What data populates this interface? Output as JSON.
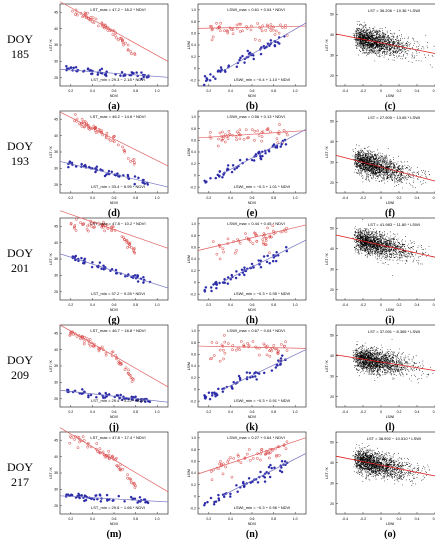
{
  "rows": [
    {
      "doy": "DOY",
      "num": "185",
      "a": {
        "label": "(a)",
        "eq_top": "LST_max = 47.2 − 16.2 * NDVI",
        "eq_bot": "LST_min = 29.3 − 2.18 * NDVI"
      },
      "b": {
        "label": "(b)",
        "eq_top": "LSWI_max = 0.61 + 0.04 * NDVI",
        "eq_bot": "LSWI_min = −0.4 + 1.10 * NDVI"
      },
      "c": {
        "label": "(c)",
        "eq": "LST = 36.206 − 10.36 * LSWI"
      }
    },
    {
      "doy": "DOY",
      "num": "193",
      "a": {
        "label": "(d)",
        "eq_top": "LST_max = 46.2 − 14.6 * NDVI",
        "eq_bot": "LST_min = 33.4 − 6.95 * NDVI"
      },
      "b": {
        "label": "(e)",
        "eq_top": "LSWI_max = 0.56 + 0.13 * NDVI",
        "eq_bot": "LSWI_min = −0.3 + 1.01 * NDVI"
      },
      "c": {
        "label": "(f)",
        "eq": "LST = 27.905 − 13.65 * LSWI"
      }
    },
    {
      "doy": "DOY",
      "num": "201",
      "a": {
        "label": "(g)",
        "eq_top": "LST_max = 47.8 − 10.2 * NDVI",
        "eq_bot": "LST_min = 37.2 − 9.28 * NDVI"
      },
      "b": {
        "label": "(h)",
        "eq_top": "LSWI_max = 0.44 + 0.45 * NDVI",
        "eq_bot": "LSWI_min = −0.3 + 0.95 * NDVI"
      },
      "c": {
        "label": "(i)",
        "eq": "LST = 41.983 − 11.80 * LSWI"
      }
    },
    {
      "doy": "DOY",
      "num": "209",
      "a": {
        "label": "(j)",
        "eq_top": "LST_max = 46.7 − 16.8 * NDVI",
        "eq_bot": "LST_min = 29.4 − 3.22 * NDVI"
      },
      "b": {
        "label": "(k)",
        "eq_top": "LSWI_max = 0.67 − 0.04 * NDVI",
        "eq_bot": "LSWI_min = −0.3 + 0.91 * NDVI"
      },
      "c": {
        "label": "(l)",
        "eq": "LST = 37.091 − 8.365 * LSWI"
      }
    },
    {
      "doy": "DOY",
      "num": "217",
      "a": {
        "label": "(m)",
        "eq_top": "LST_max = 47.8 − 17.4 * NDVI",
        "eq_bot": "LST_min = 29.6 − 1.66 * NDVI"
      },
      "b": {
        "label": "(n)",
        "eq_top": "LSWI_max = 0.27 + 0.64 * NDVI",
        "eq_bot": "LSWI_min = −0.3 + 0.96 * NDVI"
      },
      "c": {
        "label": "(o)",
        "eq": "LST = 38.992 − 10.510 * LSWI"
      }
    }
  ],
  "axes": {
    "ndvi": "NDVI",
    "lsw": "LSWI",
    "lst": "LST / K"
  },
  "ticks": {
    "ndvi": [
      "0.2",
      "0.4",
      "0.6",
      "0.8",
      "1.0"
    ],
    "lsw_x": [
      "-0.4",
      "-0.2",
      "0",
      "0.2",
      "0.4",
      "0.6"
    ],
    "lst": [
      "25",
      "30",
      "35",
      "40",
      "45"
    ],
    "lst_c": [
      "20",
      "30",
      "40",
      "50"
    ],
    "lsw_y": [
      "-0.2",
      "0",
      "0.2",
      "0.4",
      "0.6",
      "0.8",
      "1.0"
    ]
  },
  "colors": {
    "max": "#d84040",
    "min": "#2a2aa8",
    "fit": "#e06060",
    "fit_min": "#7070c0",
    "scatter": "#000000"
  },
  "chart_data": [
    {
      "type": "scatter",
      "panel": "LST-NDVI",
      "xlim": [
        0.1,
        1.0
      ],
      "ylim": [
        25,
        45
      ],
      "series": [
        {
          "name": "LST_max",
          "fits": [
            [
              47.2,
              -16.2
            ],
            [
              46.2,
              -14.6
            ],
            [
              47.8,
              -10.2
            ],
            [
              46.7,
              -16.8
            ],
            [
              47.8,
              -17.4
            ]
          ]
        },
        {
          "name": "LST_min",
          "fits": [
            [
              29.3,
              -2.18
            ],
            [
              33.4,
              -6.95
            ],
            [
              37.2,
              -9.28
            ],
            [
              29.4,
              -3.22
            ],
            [
              29.6,
              -1.66
            ]
          ]
        }
      ]
    },
    {
      "type": "scatter",
      "panel": "LSWI-NDVI",
      "xlim": [
        0.1,
        1.0
      ],
      "ylim": [
        -0.3,
        1.0
      ],
      "series": [
        {
          "name": "LSWI_max",
          "fits": [
            [
              0.61,
              0.04
            ],
            [
              0.56,
              0.13
            ],
            [
              0.44,
              0.45
            ],
            [
              0.67,
              -0.04
            ],
            [
              0.27,
              0.64
            ]
          ]
        },
        {
          "name": "LSWI_min",
          "fits": [
            [
              -0.4,
              1.1
            ],
            [
              -0.3,
              1.01
            ],
            [
              -0.3,
              0.95
            ],
            [
              -0.3,
              0.91
            ],
            [
              -0.3,
              0.96
            ]
          ]
        }
      ]
    },
    {
      "type": "scatter",
      "panel": "LST-LSWI",
      "xlim": [
        -0.4,
        0.6
      ],
      "ylim": [
        15,
        55
      ],
      "series": [
        {
          "fits": [
            [
              36.206,
              -10.36
            ],
            [
              27.905,
              -13.65
            ],
            [
              41.983,
              -11.8
            ],
            [
              37.091,
              -8.365
            ],
            [
              38.992,
              -10.51
            ]
          ]
        }
      ]
    }
  ]
}
